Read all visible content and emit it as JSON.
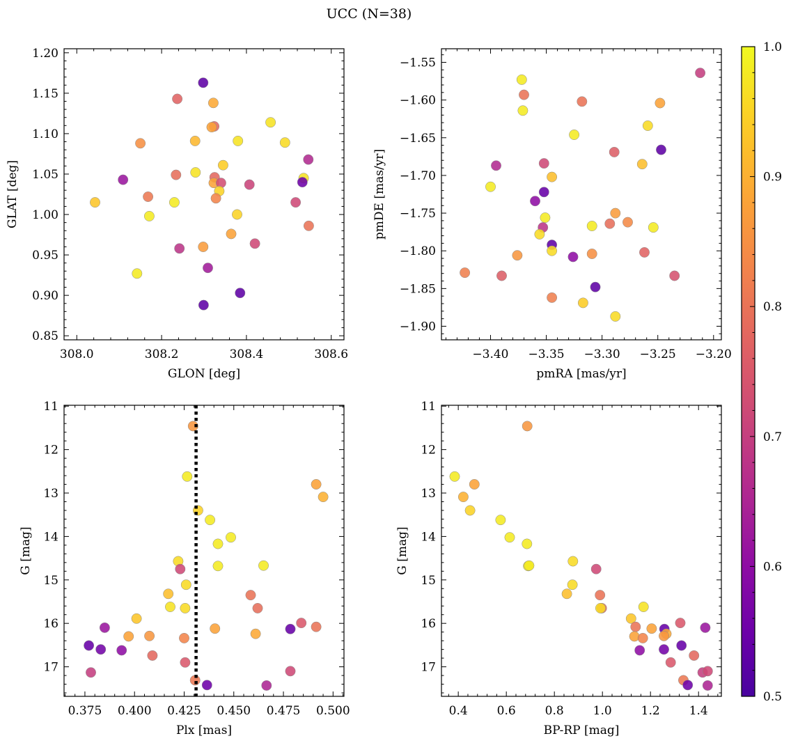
{
  "title": "UCC (N=38)",
  "colorbar": {
    "min": 0.5,
    "max": 1.0,
    "tick_labels": [
      "0.5",
      "0.6",
      "0.7",
      "0.8",
      "0.9",
      "1.0"
    ],
    "tick_values": [
      0.5,
      0.6,
      0.7,
      0.8,
      0.9,
      1.0
    ],
    "colormap": "plasma"
  },
  "chart_data": [
    {
      "type": "scatter",
      "xlabel": "GLON [deg]",
      "ylabel": "GLAT [deg]",
      "xlim": [
        307.97,
        308.63
      ],
      "ylim": [
        0.845,
        1.205
      ],
      "xticks": [
        308.0,
        308.2,
        308.4,
        308.6
      ],
      "xtick_labels": [
        "308.0",
        "308.2",
        "308.4",
        "308.6"
      ],
      "yticks": [
        0.85,
        0.9,
        0.95,
        1.0,
        1.05,
        1.1,
        1.15,
        1.2
      ],
      "ytick_labels": [
        "0.85",
        "0.90",
        "0.95",
        "1.00",
        "1.05",
        "1.10",
        "1.15",
        "1.20"
      ],
      "points": [
        {
          "x": 308.298,
          "y": 1.163,
          "c": 0.53
        },
        {
          "x": 308.237,
          "y": 1.143,
          "c": 0.77
        },
        {
          "x": 308.322,
          "y": 1.138,
          "c": 0.89
        },
        {
          "x": 308.457,
          "y": 1.114,
          "c": 0.97
        },
        {
          "x": 308.324,
          "y": 1.109,
          "c": 0.78
        },
        {
          "x": 308.318,
          "y": 1.108,
          "c": 0.88
        },
        {
          "x": 308.15,
          "y": 1.088,
          "c": 0.85
        },
        {
          "x": 308.279,
          "y": 1.091,
          "c": 0.91
        },
        {
          "x": 308.38,
          "y": 1.091,
          "c": 0.97
        },
        {
          "x": 308.491,
          "y": 1.089,
          "c": 0.96
        },
        {
          "x": 308.546,
          "y": 1.068,
          "c": 0.66
        },
        {
          "x": 308.345,
          "y": 1.061,
          "c": 0.94
        },
        {
          "x": 308.28,
          "y": 1.052,
          "c": 0.97
        },
        {
          "x": 308.234,
          "y": 1.049,
          "c": 0.79
        },
        {
          "x": 308.325,
          "y": 1.046,
          "c": 0.78
        },
        {
          "x": 308.535,
          "y": 1.045,
          "c": 0.97
        },
        {
          "x": 308.109,
          "y": 1.043,
          "c": 0.62
        },
        {
          "x": 308.532,
          "y": 1.04,
          "c": 0.55
        },
        {
          "x": 308.323,
          "y": 1.039,
          "c": 0.88
        },
        {
          "x": 308.34,
          "y": 1.039,
          "c": 0.73
        },
        {
          "x": 308.407,
          "y": 1.037,
          "c": 0.71
        },
        {
          "x": 308.336,
          "y": 1.029,
          "c": 0.95
        },
        {
          "x": 308.168,
          "y": 1.022,
          "c": 0.81
        },
        {
          "x": 308.328,
          "y": 1.02,
          "c": 0.83
        },
        {
          "x": 308.043,
          "y": 1.015,
          "c": 0.93
        },
        {
          "x": 308.23,
          "y": 1.015,
          "c": 0.98
        },
        {
          "x": 308.516,
          "y": 1.015,
          "c": 0.72
        },
        {
          "x": 308.378,
          "y": 1.0,
          "c": 0.95
        },
        {
          "x": 308.171,
          "y": 0.998,
          "c": 0.98
        },
        {
          "x": 308.547,
          "y": 0.986,
          "c": 0.8
        },
        {
          "x": 308.364,
          "y": 0.976,
          "c": 0.88
        },
        {
          "x": 308.42,
          "y": 0.964,
          "c": 0.72
        },
        {
          "x": 308.298,
          "y": 0.96,
          "c": 0.87
        },
        {
          "x": 308.242,
          "y": 0.958,
          "c": 0.68
        },
        {
          "x": 308.309,
          "y": 0.934,
          "c": 0.63
        },
        {
          "x": 308.142,
          "y": 0.927,
          "c": 0.98
        },
        {
          "x": 308.385,
          "y": 0.903,
          "c": 0.53
        },
        {
          "x": 308.299,
          "y": 0.888,
          "c": 0.53
        }
      ]
    },
    {
      "type": "scatter",
      "xlabel": "pmRA [mas/yr]",
      "ylabel": "pmDE [mas/yr]",
      "xlim": [
        -3.444,
        -3.193
      ],
      "ylim": [
        -1.918,
        -1.532
      ],
      "xticks": [
        -3.4,
        -3.35,
        -3.3,
        -3.25,
        -3.2
      ],
      "xtick_labels": [
        "−3.40",
        "−3.35",
        "−3.30",
        "−3.25",
        "−3.20"
      ],
      "yticks": [
        -1.9,
        -1.85,
        -1.8,
        -1.75,
        -1.7,
        -1.65,
        -1.6,
        -1.55
      ],
      "ytick_labels": [
        "−1.90",
        "−1.85",
        "−1.80",
        "−1.75",
        "−1.70",
        "−1.65",
        "−1.60",
        "−1.55"
      ],
      "points": [
        {
          "x": -3.212,
          "y": -1.564,
          "c": 0.7
        },
        {
          "x": -3.372,
          "y": -1.573,
          "c": 0.98
        },
        {
          "x": -3.37,
          "y": -1.593,
          "c": 0.8
        },
        {
          "x": -3.318,
          "y": -1.602,
          "c": 0.8
        },
        {
          "x": -3.248,
          "y": -1.604,
          "c": 0.88
        },
        {
          "x": -3.371,
          "y": -1.614,
          "c": 0.98
        },
        {
          "x": -3.259,
          "y": -1.634,
          "c": 0.96
        },
        {
          "x": -3.325,
          "y": -1.646,
          "c": 0.98
        },
        {
          "x": -3.247,
          "y": -1.666,
          "c": 0.53
        },
        {
          "x": -3.289,
          "y": -1.669,
          "c": 0.76
        },
        {
          "x": -3.352,
          "y": -1.684,
          "c": 0.72
        },
        {
          "x": -3.264,
          "y": -1.685,
          "c": 0.92
        },
        {
          "x": -3.395,
          "y": -1.687,
          "c": 0.66
        },
        {
          "x": -3.345,
          "y": -1.702,
          "c": 0.92
        },
        {
          "x": -3.4,
          "y": -1.715,
          "c": 0.98
        },
        {
          "x": -3.352,
          "y": -1.722,
          "c": 0.54
        },
        {
          "x": -3.36,
          "y": -1.734,
          "c": 0.6
        },
        {
          "x": -3.288,
          "y": -1.75,
          "c": 0.87
        },
        {
          "x": -3.351,
          "y": -1.756,
          "c": 0.98
        },
        {
          "x": -3.277,
          "y": -1.762,
          "c": 0.84
        },
        {
          "x": -3.293,
          "y": -1.764,
          "c": 0.79
        },
        {
          "x": -3.309,
          "y": -1.767,
          "c": 0.98
        },
        {
          "x": -3.254,
          "y": -1.769,
          "c": 0.98
        },
        {
          "x": -3.353,
          "y": -1.769,
          "c": 0.68
        },
        {
          "x": -3.356,
          "y": -1.778,
          "c": 0.96
        },
        {
          "x": -3.345,
          "y": -1.792,
          "c": 0.53
        },
        {
          "x": -3.345,
          "y": -1.8,
          "c": 0.96
        },
        {
          "x": -3.262,
          "y": -1.802,
          "c": 0.77
        },
        {
          "x": -3.309,
          "y": -1.804,
          "c": 0.85
        },
        {
          "x": -3.376,
          "y": -1.806,
          "c": 0.86
        },
        {
          "x": -3.326,
          "y": -1.808,
          "c": 0.6
        },
        {
          "x": -3.423,
          "y": -1.829,
          "c": 0.82
        },
        {
          "x": -3.235,
          "y": -1.833,
          "c": 0.74
        },
        {
          "x": -3.39,
          "y": -1.833,
          "c": 0.76
        },
        {
          "x": -3.306,
          "y": -1.848,
          "c": 0.53
        },
        {
          "x": -3.345,
          "y": -1.862,
          "c": 0.82
        },
        {
          "x": -3.317,
          "y": -1.869,
          "c": 0.94
        },
        {
          "x": -3.288,
          "y": -1.887,
          "c": 0.96
        }
      ]
    },
    {
      "type": "scatter",
      "xlabel": "Plx [mas]",
      "ylabel": "G [mag]",
      "xlim": [
        0.3645,
        0.5055
      ],
      "ylim": [
        17.68,
        10.98
      ],
      "xticks": [
        0.375,
        0.4,
        0.425,
        0.45,
        0.475,
        0.5
      ],
      "xtick_labels": [
        "0.375",
        "0.400",
        "0.425",
        "0.450",
        "0.475",
        "0.500"
      ],
      "yticks": [
        11,
        12,
        13,
        14,
        15,
        16,
        17
      ],
      "ytick_labels": [
        "11",
        "12",
        "13",
        "14",
        "15",
        "16",
        "17"
      ],
      "vline": 0.431,
      "points": [
        {
          "x": 0.4295,
          "y": 11.46,
          "c": 0.86
        },
        {
          "x": 0.4265,
          "y": 12.62,
          "c": 0.98
        },
        {
          "x": 0.4915,
          "y": 12.8,
          "c": 0.88
        },
        {
          "x": 0.495,
          "y": 13.09,
          "c": 0.9
        },
        {
          "x": 0.432,
          "y": 13.4,
          "c": 0.95
        },
        {
          "x": 0.438,
          "y": 13.62,
          "c": 0.98
        },
        {
          "x": 0.4485,
          "y": 14.02,
          "c": 0.98
        },
        {
          "x": 0.442,
          "y": 14.17,
          "c": 0.98
        },
        {
          "x": 0.422,
          "y": 14.57,
          "c": 0.96
        },
        {
          "x": 0.442,
          "y": 14.68,
          "c": 0.98
        },
        {
          "x": 0.465,
          "y": 14.67,
          "c": 0.98
        },
        {
          "x": 0.423,
          "y": 14.75,
          "c": 0.72
        },
        {
          "x": 0.426,
          "y": 15.11,
          "c": 0.96
        },
        {
          "x": 0.417,
          "y": 15.32,
          "c": 0.92
        },
        {
          "x": 0.4585,
          "y": 15.35,
          "c": 0.8
        },
        {
          "x": 0.418,
          "y": 15.62,
          "c": 0.97
        },
        {
          "x": 0.462,
          "y": 15.65,
          "c": 0.79
        },
        {
          "x": 0.4255,
          "y": 15.65,
          "c": 0.96
        },
        {
          "x": 0.401,
          "y": 15.89,
          "c": 0.93
        },
        {
          "x": 0.484,
          "y": 15.99,
          "c": 0.75
        },
        {
          "x": 0.4915,
          "y": 16.08,
          "c": 0.8
        },
        {
          "x": 0.385,
          "y": 16.1,
          "c": 0.62
        },
        {
          "x": 0.4405,
          "y": 16.12,
          "c": 0.88
        },
        {
          "x": 0.4785,
          "y": 16.13,
          "c": 0.54
        },
        {
          "x": 0.461,
          "y": 16.24,
          "c": 0.89
        },
        {
          "x": 0.397,
          "y": 16.3,
          "c": 0.88
        },
        {
          "x": 0.4075,
          "y": 16.29,
          "c": 0.86
        },
        {
          "x": 0.425,
          "y": 16.34,
          "c": 0.83
        },
        {
          "x": 0.377,
          "y": 16.51,
          "c": 0.54
        },
        {
          "x": 0.383,
          "y": 16.6,
          "c": 0.56
        },
        {
          "x": 0.3935,
          "y": 16.62,
          "c": 0.6
        },
        {
          "x": 0.409,
          "y": 16.74,
          "c": 0.78
        },
        {
          "x": 0.4255,
          "y": 16.9,
          "c": 0.75
        },
        {
          "x": 0.378,
          "y": 17.13,
          "c": 0.7
        },
        {
          "x": 0.4785,
          "y": 17.1,
          "c": 0.72
        },
        {
          "x": 0.4305,
          "y": 17.31,
          "c": 0.81
        },
        {
          "x": 0.4365,
          "y": 17.42,
          "c": 0.55
        },
        {
          "x": 0.4665,
          "y": 17.43,
          "c": 0.65
        }
      ]
    },
    {
      "type": "scatter",
      "xlabel": "BP-RP [mag]",
      "ylabel": "G [mag]",
      "xlim": [
        0.33,
        1.495
      ],
      "ylim": [
        17.68,
        10.98
      ],
      "xticks": [
        0.4,
        0.6,
        0.8,
        1.0,
        1.2,
        1.4
      ],
      "xtick_labels": [
        "0.4",
        "0.6",
        "0.8",
        "1.0",
        "1.2",
        "1.4"
      ],
      "yticks": [
        11,
        12,
        13,
        14,
        15,
        16,
        17
      ],
      "ytick_labels": [
        "11",
        "12",
        "13",
        "14",
        "15",
        "16",
        "17"
      ],
      "points": [
        {
          "x": 0.687,
          "y": 11.46,
          "c": 0.86
        },
        {
          "x": 0.385,
          "y": 12.62,
          "c": 0.98
        },
        {
          "x": 0.467,
          "y": 12.8,
          "c": 0.88
        },
        {
          "x": 0.421,
          "y": 13.09,
          "c": 0.9
        },
        {
          "x": 0.449,
          "y": 13.4,
          "c": 0.95
        },
        {
          "x": 0.576,
          "y": 13.62,
          "c": 0.98
        },
        {
          "x": 0.614,
          "y": 14.02,
          "c": 0.98
        },
        {
          "x": 0.686,
          "y": 14.17,
          "c": 0.98
        },
        {
          "x": 0.877,
          "y": 14.57,
          "c": 0.96
        },
        {
          "x": 0.691,
          "y": 14.68,
          "c": 0.98
        },
        {
          "x": 0.695,
          "y": 14.67,
          "c": 0.98
        },
        {
          "x": 0.974,
          "y": 14.75,
          "c": 0.72
        },
        {
          "x": 0.875,
          "y": 15.11,
          "c": 0.96
        },
        {
          "x": 0.852,
          "y": 15.32,
          "c": 0.92
        },
        {
          "x": 0.99,
          "y": 15.35,
          "c": 0.8
        },
        {
          "x": 1.171,
          "y": 15.62,
          "c": 0.97
        },
        {
          "x": 0.997,
          "y": 15.65,
          "c": 0.79
        },
        {
          "x": 0.992,
          "y": 15.65,
          "c": 0.96
        },
        {
          "x": 1.119,
          "y": 15.89,
          "c": 0.93
        },
        {
          "x": 1.324,
          "y": 15.99,
          "c": 0.75
        },
        {
          "x": 1.138,
          "y": 16.08,
          "c": 0.8
        },
        {
          "x": 1.428,
          "y": 16.1,
          "c": 0.62
        },
        {
          "x": 1.205,
          "y": 16.12,
          "c": 0.88
        },
        {
          "x": 1.258,
          "y": 16.13,
          "c": 0.54
        },
        {
          "x": 1.266,
          "y": 16.24,
          "c": 0.89
        },
        {
          "x": 1.133,
          "y": 16.3,
          "c": 0.88
        },
        {
          "x": 1.256,
          "y": 16.29,
          "c": 0.86
        },
        {
          "x": 1.168,
          "y": 16.34,
          "c": 0.83
        },
        {
          "x": 1.329,
          "y": 16.51,
          "c": 0.54
        },
        {
          "x": 1.256,
          "y": 16.6,
          "c": 0.56
        },
        {
          "x": 1.155,
          "y": 16.62,
          "c": 0.6
        },
        {
          "x": 1.381,
          "y": 16.74,
          "c": 0.78
        },
        {
          "x": 1.284,
          "y": 16.9,
          "c": 0.75
        },
        {
          "x": 1.417,
          "y": 17.13,
          "c": 0.7
        },
        {
          "x": 1.438,
          "y": 17.1,
          "c": 0.72
        },
        {
          "x": 1.337,
          "y": 17.31,
          "c": 0.81
        },
        {
          "x": 1.355,
          "y": 17.42,
          "c": 0.55
        },
        {
          "x": 1.438,
          "y": 17.43,
          "c": 0.65
        }
      ]
    }
  ]
}
